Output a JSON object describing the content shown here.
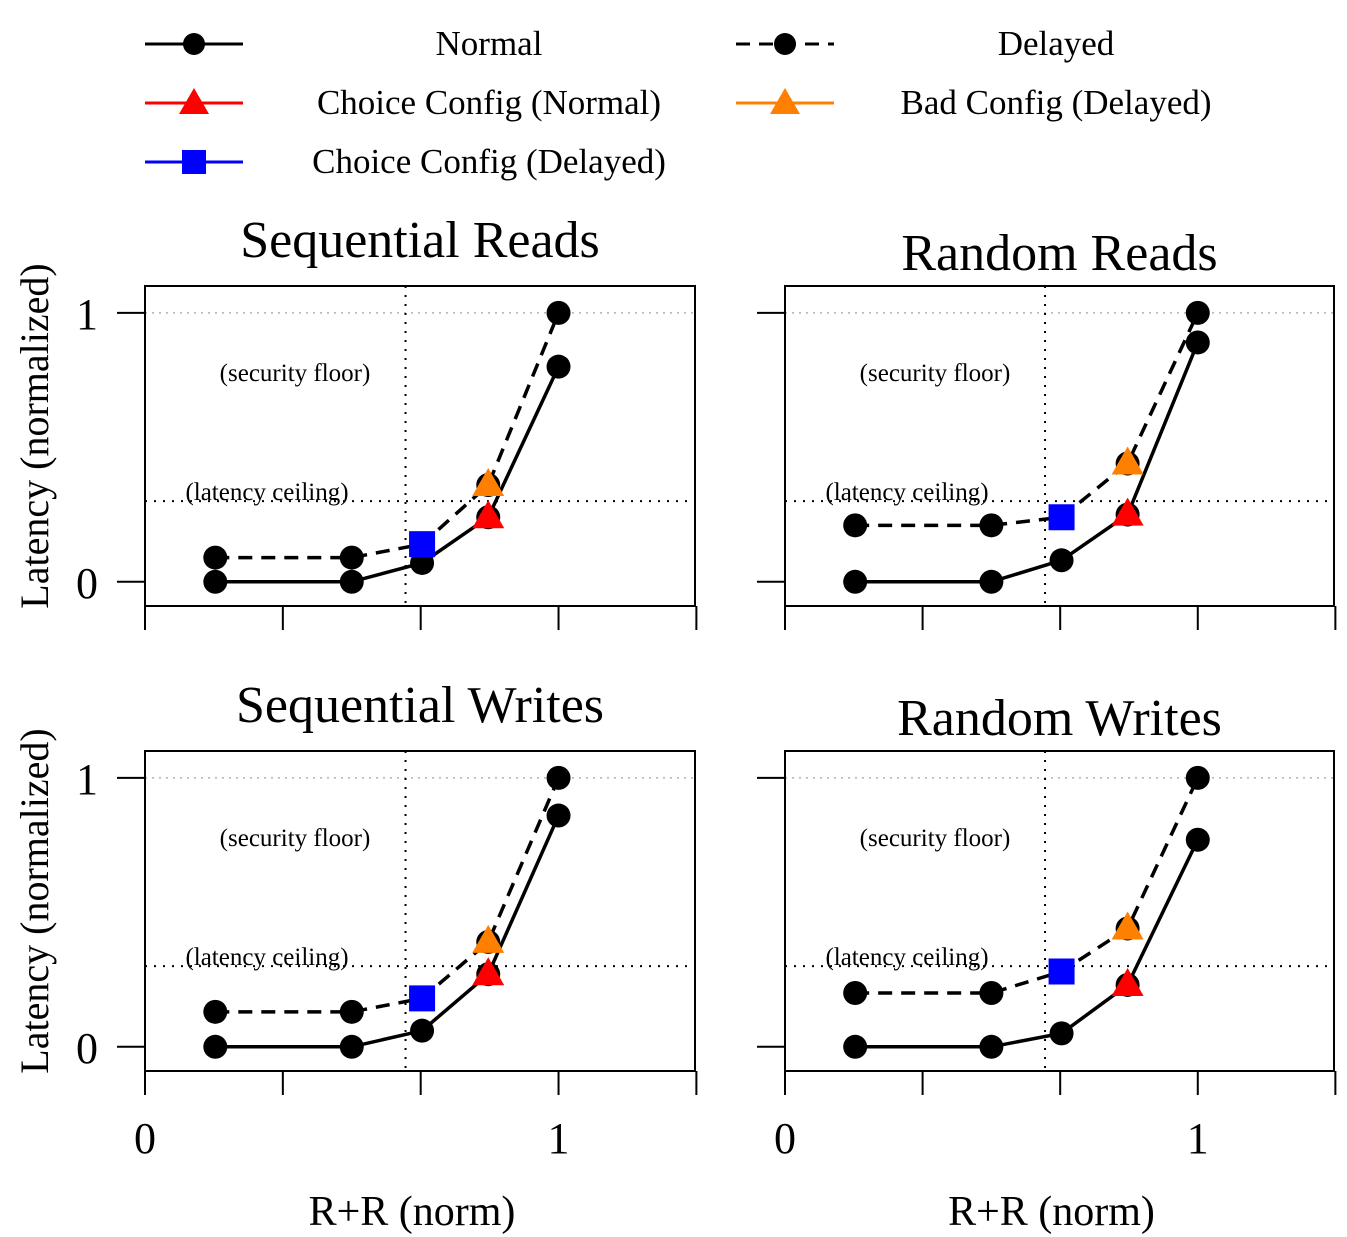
{
  "legend": {
    "normal": "Normal",
    "delayed": "Delayed",
    "choice_normal": "Choice Config (Normal)",
    "bad_delayed": "Bad Config (Delayed)",
    "choice_delayed": "Choice Config (Delayed)"
  },
  "colors": {
    "series": "#000000",
    "choice_normal": "#ff0000",
    "bad_delayed": "#ff8000",
    "choice_delayed": "#0000ff",
    "guides": "#000000",
    "gridline": "#b0b0b0"
  },
  "chart_data": [
    {
      "type": "line",
      "title": "Sequential Reads",
      "ylabel": "Latency (normalized)",
      "xlabel": "",
      "xlim": [
        0,
        1.33
      ],
      "ylim": [
        -0.09,
        1.1
      ],
      "xticks": [
        0,
        1
      ],
      "yticks": [
        0,
        1
      ],
      "grid": "y at 1",
      "security_floor": {
        "label": "(security floor)",
        "x": 0.63
      },
      "latency_ceiling": {
        "label": "(latency ceiling)",
        "y": 0.3
      },
      "series": [
        {
          "name": "Normal",
          "style": "solid",
          "x": [
            0.17,
            0.5,
            0.67,
            0.83,
            1.0
          ],
          "y": [
            0.0,
            0.0,
            0.07,
            0.24,
            0.8
          ]
        },
        {
          "name": "Delayed",
          "style": "dashed",
          "x": [
            0.17,
            0.5,
            0.67,
            0.83,
            1.0
          ],
          "y": [
            0.09,
            0.09,
            0.14,
            0.36,
            1.0
          ]
        }
      ],
      "markers": {
        "choice_normal": {
          "x": 0.83,
          "y": 0.24
        },
        "choice_delayed": {
          "x": 0.67,
          "y": 0.14
        },
        "bad_delayed": {
          "x": 0.83,
          "y": 0.36
        }
      }
    },
    {
      "type": "line",
      "title": "Random Reads",
      "ylabel": "",
      "xlabel": "",
      "xlim": [
        0,
        1.33
      ],
      "ylim": [
        -0.09,
        1.1
      ],
      "xticks": [
        0,
        1
      ],
      "yticks": [
        0,
        1
      ],
      "grid": "y at 1",
      "security_floor": {
        "label": "(security floor)",
        "x": 0.63
      },
      "latency_ceiling": {
        "label": "(latency ceiling)",
        "y": 0.3
      },
      "series": [
        {
          "name": "Normal",
          "style": "solid",
          "x": [
            0.17,
            0.5,
            0.67,
            0.83,
            1.0
          ],
          "y": [
            0.0,
            0.0,
            0.08,
            0.25,
            0.89
          ]
        },
        {
          "name": "Delayed",
          "style": "dashed",
          "x": [
            0.17,
            0.5,
            0.67,
            0.83,
            1.0
          ],
          "y": [
            0.21,
            0.21,
            0.24,
            0.44,
            1.0
          ]
        }
      ],
      "markers": {
        "choice_normal": {
          "x": 0.83,
          "y": 0.25
        },
        "choice_delayed": {
          "x": 0.67,
          "y": 0.24
        },
        "bad_delayed": {
          "x": 0.83,
          "y": 0.44
        }
      }
    },
    {
      "type": "line",
      "title": "Sequential Writes",
      "ylabel": "Latency (normalized)",
      "xlabel": "R+R (norm)",
      "xlim": [
        0,
        1.33
      ],
      "ylim": [
        -0.09,
        1.1
      ],
      "xticks": [
        0,
        1
      ],
      "yticks": [
        0,
        1
      ],
      "xticklabels": [
        "0",
        "1"
      ],
      "grid": "y at 1",
      "security_floor": {
        "label": "(security floor)",
        "x": 0.63
      },
      "latency_ceiling": {
        "label": "(latency ceiling)",
        "y": 0.3
      },
      "series": [
        {
          "name": "Normal",
          "style": "solid",
          "x": [
            0.17,
            0.5,
            0.67,
            0.83,
            1.0
          ],
          "y": [
            0.0,
            0.0,
            0.06,
            0.27,
            0.86
          ]
        },
        {
          "name": "Delayed",
          "style": "dashed",
          "x": [
            0.17,
            0.5,
            0.67,
            0.83,
            1.0
          ],
          "y": [
            0.13,
            0.13,
            0.18,
            0.39,
            1.0
          ]
        }
      ],
      "markers": {
        "choice_normal": {
          "x": 0.83,
          "y": 0.27
        },
        "choice_delayed": {
          "x": 0.67,
          "y": 0.18
        },
        "bad_delayed": {
          "x": 0.83,
          "y": 0.39
        }
      }
    },
    {
      "type": "line",
      "title": "Random Writes",
      "ylabel": "",
      "xlabel": "R+R (norm)",
      "xlim": [
        0,
        1.33
      ],
      "ylim": [
        -0.09,
        1.1
      ],
      "xticks": [
        0,
        1
      ],
      "yticks": [
        0,
        1
      ],
      "xticklabels": [
        "0",
        "1"
      ],
      "grid": "y at 1",
      "security_floor": {
        "label": "(security floor)",
        "x": 0.63
      },
      "latency_ceiling": {
        "label": "(latency ceiling)",
        "y": 0.3
      },
      "series": [
        {
          "name": "Normal",
          "style": "solid",
          "x": [
            0.17,
            0.5,
            0.67,
            0.83,
            1.0
          ],
          "y": [
            0.0,
            0.0,
            0.05,
            0.23,
            0.77
          ]
        },
        {
          "name": "Delayed",
          "style": "dashed",
          "x": [
            0.17,
            0.5,
            0.67,
            0.83,
            1.0
          ],
          "y": [
            0.2,
            0.2,
            0.28,
            0.44,
            1.0
          ]
        }
      ],
      "markers": {
        "choice_normal": {
          "x": 0.83,
          "y": 0.23
        },
        "choice_delayed": {
          "x": 0.67,
          "y": 0.28
        },
        "bad_delayed": {
          "x": 0.83,
          "y": 0.44
        }
      }
    }
  ]
}
